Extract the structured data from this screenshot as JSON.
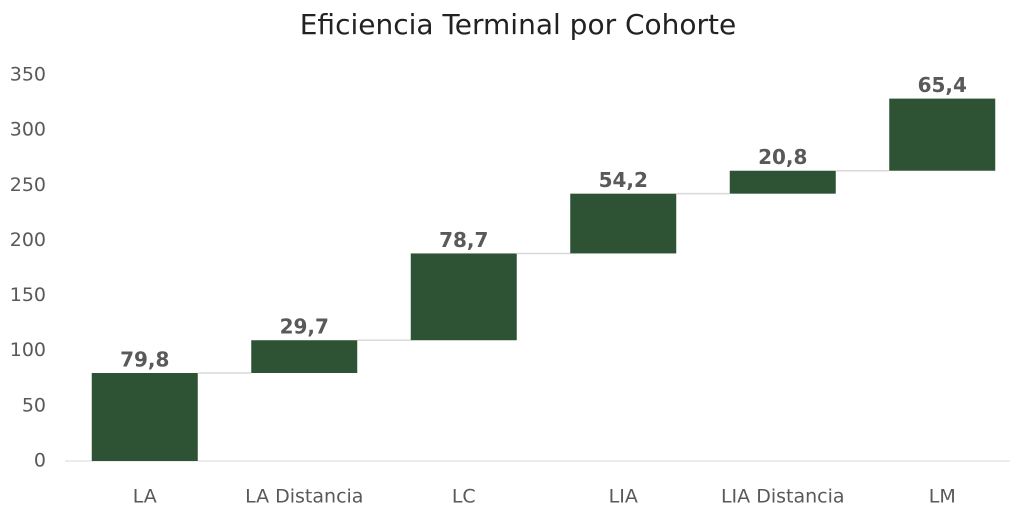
{
  "chart_data": {
    "type": "waterfall",
    "title": "Eficiencia Terminal por Cohorte",
    "categories": [
      "LA",
      "LA Distancia",
      "LC",
      "LIA",
      "LIA Distancia",
      "LM"
    ],
    "values": [
      79.8,
      29.7,
      78.7,
      54.2,
      20.8,
      65.4
    ],
    "value_labels": [
      "79,8",
      "29,7",
      "78,7",
      "54,2",
      "20,8",
      "65,4"
    ],
    "color": "#2d5234",
    "ylim": [
      0,
      350
    ],
    "yticks": [
      0,
      50,
      100,
      150,
      200,
      250,
      300,
      350
    ],
    "grid": false
  }
}
